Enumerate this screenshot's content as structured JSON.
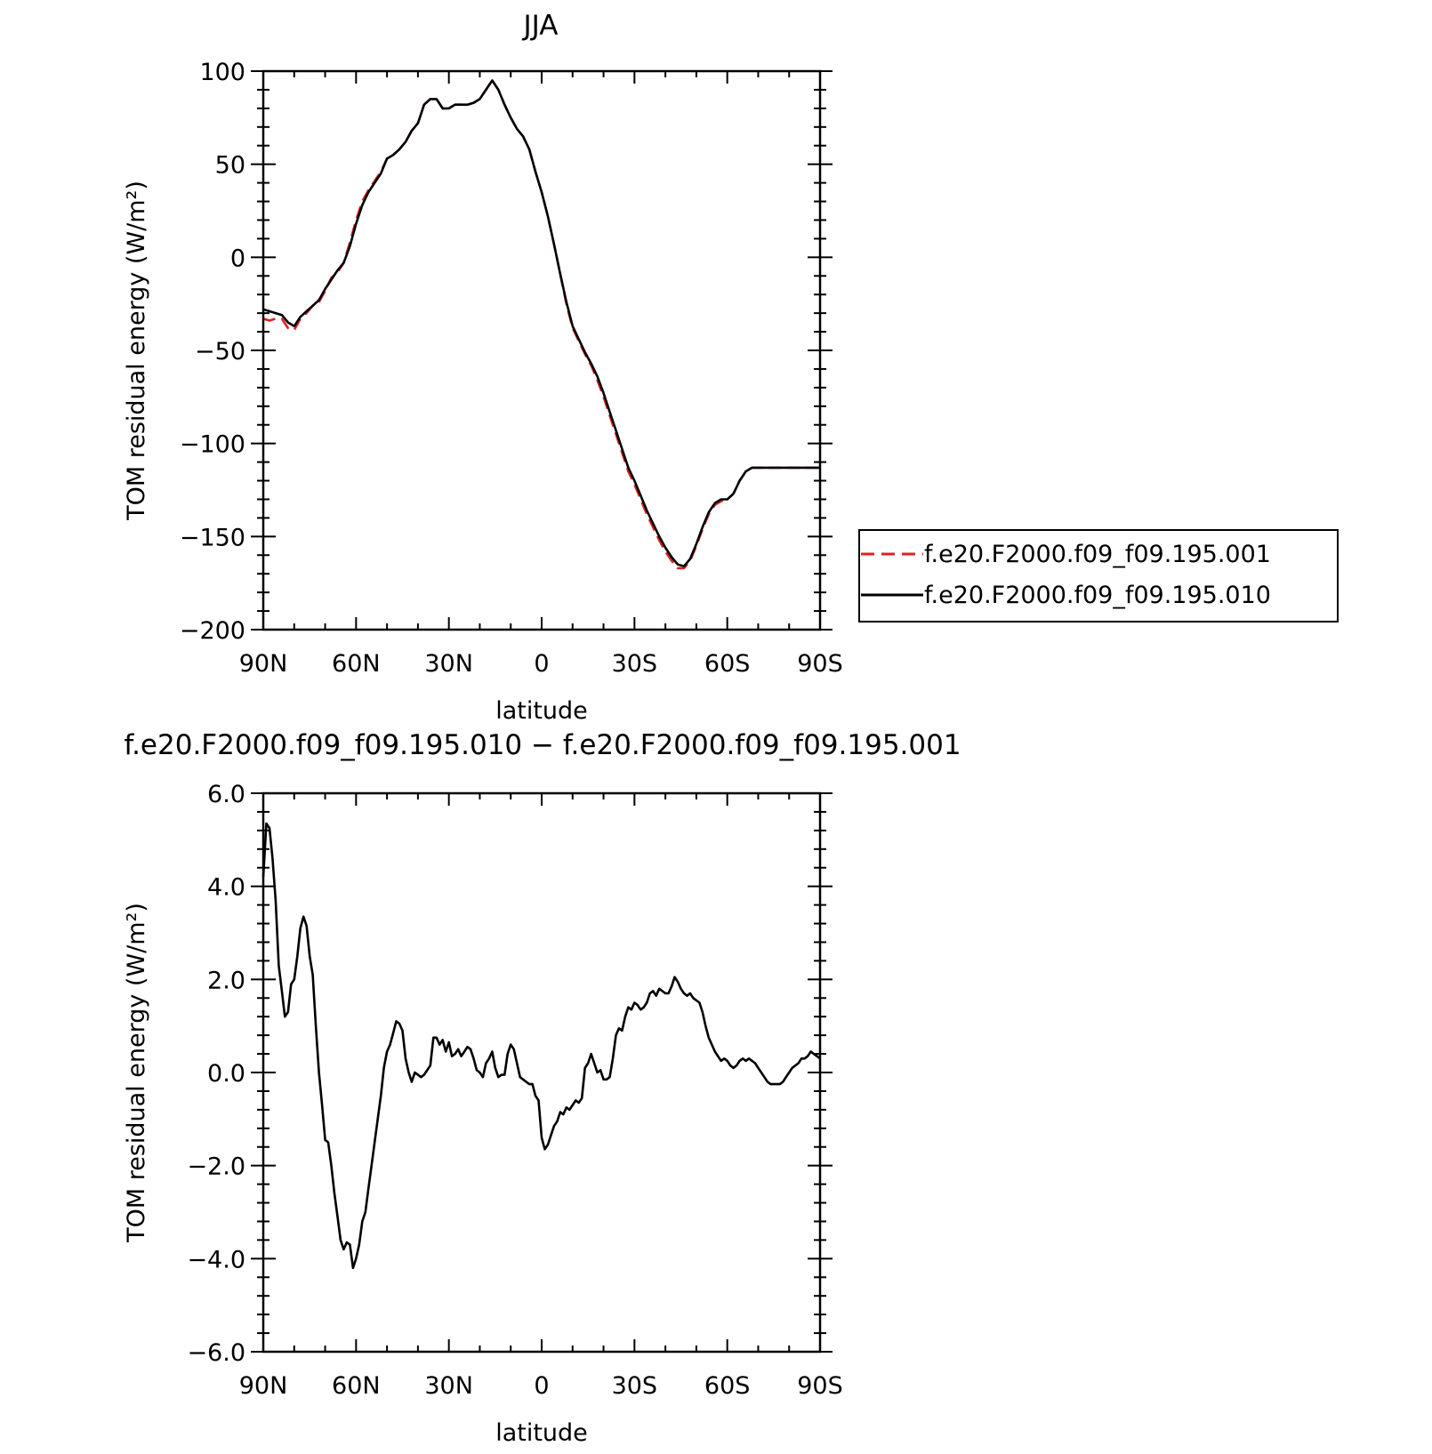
{
  "chart_data": [
    {
      "type": "line",
      "title": "JJA",
      "xlabel": "latitude",
      "ylabel": "TOM residual energy (W/m²)",
      "xlim": [
        90,
        -90
      ],
      "ylim": [
        -200,
        100
      ],
      "x_tick_values": [
        90,
        60,
        30,
        0,
        -30,
        -60,
        -90
      ],
      "x_tick_labels": [
        "90N",
        "60N",
        "30N",
        "0",
        "30S",
        "60S",
        "90S"
      ],
      "y_tick_values": [
        100,
        50,
        0,
        -50,
        -100,
        -150,
        -200
      ],
      "y_tick_labels": [
        "100",
        "50",
        "0",
        "−50",
        "−100",
        "−150",
        "−200"
      ],
      "legend_position": "right",
      "series": [
        {
          "name": "f.e20.F2000.f09_f09.195.001",
          "color": "#e02020",
          "dash": "dashed",
          "x": [
            90,
            88,
            86,
            84,
            82,
            80,
            78,
            76,
            74,
            72,
            70,
            68,
            66,
            64,
            62,
            60,
            58,
            56,
            54,
            52,
            50,
            48,
            46,
            44,
            42,
            40,
            38,
            36,
            34,
            32,
            30,
            28,
            26,
            24,
            22,
            20,
            18,
            16,
            14,
            12,
            10,
            8,
            6,
            4,
            2,
            0,
            -2,
            -4,
            -6,
            -8,
            -10,
            -12,
            -14,
            -16,
            -18,
            -20,
            -22,
            -24,
            -26,
            -28,
            -30,
            -32,
            -34,
            -36,
            -38,
            -40,
            -42,
            -44,
            -46,
            -48,
            -50,
            -52,
            -54,
            -56,
            -58,
            -60,
            -62,
            -64,
            -66,
            -68,
            -70,
            -72,
            -74,
            -76,
            -78,
            -80,
            -82,
            -84,
            -86,
            -88,
            -90
          ],
          "y": [
            -33,
            -34,
            -33,
            -33,
            -38,
            -39,
            -33,
            -30,
            -26,
            -24,
            -18,
            -11,
            -8,
            -3,
            8,
            20,
            30,
            36,
            41,
            46,
            53,
            55,
            58,
            62,
            68,
            72,
            82,
            85,
            85,
            80,
            80,
            82,
            82,
            82,
            83,
            85,
            90,
            95,
            90,
            82,
            75,
            69,
            65,
            58,
            46,
            35,
            22,
            7,
            -9,
            -25,
            -38,
            -45,
            -52,
            -58,
            -66,
            -75,
            -85,
            -95,
            -105,
            -115,
            -122,
            -130,
            -138,
            -145,
            -152,
            -158,
            -163,
            -167,
            -167,
            -163,
            -155,
            -146,
            -138,
            -133,
            -131,
            -130,
            -127,
            -120,
            -115,
            -113,
            -113,
            -113,
            -113,
            -113,
            -113,
            -113,
            -113,
            -113,
            -113,
            -113,
            -113
          ]
        },
        {
          "name": "f.e20.F2000.f09_f09.195.010",
          "color": "#000000",
          "dash": "solid",
          "x": [
            90,
            88,
            86,
            84,
            82,
            80,
            78,
            76,
            74,
            72,
            70,
            68,
            66,
            64,
            62,
            60,
            58,
            56,
            54,
            52,
            50,
            48,
            46,
            44,
            42,
            40,
            38,
            36,
            34,
            32,
            30,
            28,
            26,
            24,
            22,
            20,
            18,
            16,
            14,
            12,
            10,
            8,
            6,
            4,
            2,
            0,
            -2,
            -4,
            -6,
            -8,
            -10,
            -12,
            -14,
            -16,
            -18,
            -20,
            -22,
            -24,
            -26,
            -28,
            -30,
            -32,
            -34,
            -36,
            -38,
            -40,
            -42,
            -44,
            -46,
            -48,
            -50,
            -52,
            -54,
            -56,
            -58,
            -60,
            -62,
            -64,
            -66,
            -68,
            -70,
            -72,
            -74,
            -76,
            -78,
            -80,
            -82,
            -84,
            -86,
            -88,
            -90
          ],
          "y": [
            -28,
            -29,
            -30,
            -31,
            -35,
            -37,
            -32,
            -29,
            -26,
            -23,
            -17,
            -12,
            -7,
            -3,
            6,
            18,
            28,
            35,
            40,
            45,
            53,
            55,
            58,
            62,
            68,
            72,
            82,
            85,
            85,
            80,
            80,
            82,
            82,
            82,
            83,
            85,
            90,
            95,
            90,
            82,
            75,
            69,
            65,
            58,
            46,
            35,
            22,
            7,
            -9,
            -24,
            -37,
            -44,
            -51,
            -57,
            -64,
            -73,
            -83,
            -93,
            -103,
            -113,
            -120,
            -128,
            -136,
            -143,
            -150,
            -156,
            -161,
            -165,
            -166,
            -162,
            -154,
            -145,
            -137,
            -132,
            -130,
            -130,
            -127,
            -120,
            -115,
            -113,
            -113,
            -113,
            -113,
            -113,
            -113,
            -113,
            -113,
            -113,
            -113,
            -113,
            -113
          ]
        }
      ]
    },
    {
      "type": "line",
      "title": "f.e20.F2000.f09_f09.195.010 − f.e20.F2000.f09_f09.195.001",
      "xlabel": "latitude",
      "ylabel": "TOM residual energy (W/m²)",
      "xlim": [
        90,
        -90
      ],
      "ylim": [
        -6,
        6
      ],
      "x_tick_values": [
        90,
        60,
        30,
        0,
        -30,
        -60,
        -90
      ],
      "x_tick_labels": [
        "90N",
        "60N",
        "30N",
        "0",
        "30S",
        "60S",
        "90S"
      ],
      "y_tick_values": [
        6,
        4,
        2,
        0,
        -2,
        -4,
        -6
      ],
      "y_tick_labels": [
        "6.0",
        "4.0",
        "2.0",
        "0.0",
        "−2.0",
        "−4.0",
        "−6.0"
      ],
      "series": [
        {
          "color": "#000000",
          "dash": "solid",
          "x": [
            90,
            89,
            88,
            87,
            86,
            85,
            84,
            83,
            82,
            81,
            80,
            79,
            78,
            77,
            76,
            75,
            74,
            73,
            72,
            71,
            70,
            69,
            68,
            67,
            66,
            65,
            64,
            63,
            62,
            61,
            60,
            59,
            58,
            57,
            56,
            55,
            54,
            53,
            52,
            51,
            50,
            49,
            48,
            47,
            46,
            45,
            44,
            43,
            42,
            41,
            40,
            39,
            38,
            37,
            36,
            35,
            34,
            33,
            32,
            31,
            30,
            29,
            28,
            27,
            26,
            25,
            24,
            23,
            22,
            21,
            20,
            19,
            18,
            17,
            16,
            15,
            14,
            13,
            12,
            11,
            10,
            9,
            8,
            7,
            6,
            5,
            4,
            3,
            2,
            1,
            0,
            -1,
            -2,
            -3,
            -4,
            -5,
            -6,
            -7,
            -8,
            -9,
            -10,
            -11,
            -12,
            -13,
            -14,
            -15,
            -16,
            -17,
            -18,
            -19,
            -20,
            -21,
            -22,
            -23,
            -24,
            -25,
            -26,
            -27,
            -28,
            -29,
            -30,
            -31,
            -32,
            -33,
            -34,
            -35,
            -36,
            -37,
            -38,
            -39,
            -40,
            -41,
            -42,
            -43,
            -44,
            -45,
            -46,
            -47,
            -48,
            -49,
            -50,
            -51,
            -52,
            -53,
            -54,
            -55,
            -56,
            -57,
            -58,
            -59,
            -60,
            -61,
            -62,
            -63,
            -64,
            -65,
            -66,
            -67,
            -68,
            -69,
            -70,
            -71,
            -72,
            -73,
            -74,
            -75,
            -76,
            -77,
            -78,
            -79,
            -80,
            -81,
            -82,
            -83,
            -84,
            -85,
            -86,
            -87,
            -88,
            -89,
            -90
          ],
          "y": [
            4.2,
            5.35,
            5.25,
            4.6,
            3.7,
            2.3,
            1.75,
            1.2,
            1.3,
            1.9,
            2.0,
            2.5,
            3.1,
            3.35,
            3.15,
            2.5,
            2.1,
            1.0,
            0.0,
            -0.7,
            -1.45,
            -1.5,
            -2.0,
            -2.6,
            -3.1,
            -3.6,
            -3.8,
            -3.65,
            -3.7,
            -4.2,
            -4.0,
            -3.7,
            -3.2,
            -3.0,
            -2.5,
            -2.0,
            -1.5,
            -1.0,
            -0.5,
            0.1,
            0.45,
            0.6,
            0.85,
            1.1,
            1.05,
            0.9,
            0.3,
            0.0,
            -0.2,
            0.0,
            -0.05,
            -0.1,
            -0.05,
            0.05,
            0.15,
            0.75,
            0.75,
            0.6,
            0.7,
            0.45,
            0.65,
            0.35,
            0.4,
            0.5,
            0.35,
            0.45,
            0.55,
            0.5,
            0.3,
            0.05,
            0.0,
            -0.1,
            0.2,
            0.3,
            0.45,
            0.1,
            -0.1,
            -0.05,
            -0.05,
            0.4,
            0.6,
            0.5,
            0.2,
            -0.1,
            -0.15,
            -0.2,
            -0.25,
            -0.25,
            -0.5,
            -0.6,
            -1.4,
            -1.65,
            -1.55,
            -1.35,
            -1.15,
            -1.05,
            -0.85,
            -0.9,
            -0.75,
            -0.8,
            -0.7,
            -0.6,
            -0.65,
            -0.55,
            0.1,
            0.2,
            0.4,
            0.2,
            0.0,
            0.05,
            -0.15,
            -0.15,
            -0.1,
            0.3,
            0.8,
            0.95,
            0.9,
            1.2,
            1.4,
            1.35,
            1.5,
            1.45,
            1.35,
            1.4,
            1.5,
            1.7,
            1.75,
            1.65,
            1.8,
            1.75,
            1.7,
            1.7,
            1.85,
            2.05,
            1.95,
            1.8,
            1.7,
            1.65,
            1.7,
            1.6,
            1.55,
            1.5,
            1.3,
            1.0,
            0.75,
            0.6,
            0.45,
            0.35,
            0.25,
            0.3,
            0.25,
            0.15,
            0.1,
            0.15,
            0.25,
            0.3,
            0.25,
            0.3,
            0.25,
            0.2,
            0.1,
            0.0,
            -0.1,
            -0.2,
            -0.25,
            -0.25,
            -0.25,
            -0.25,
            -0.2,
            -0.1,
            0.0,
            0.1,
            0.15,
            0.2,
            0.3,
            0.3,
            0.35,
            0.45,
            0.4,
            0.35,
            0.3
          ]
        }
      ]
    }
  ]
}
